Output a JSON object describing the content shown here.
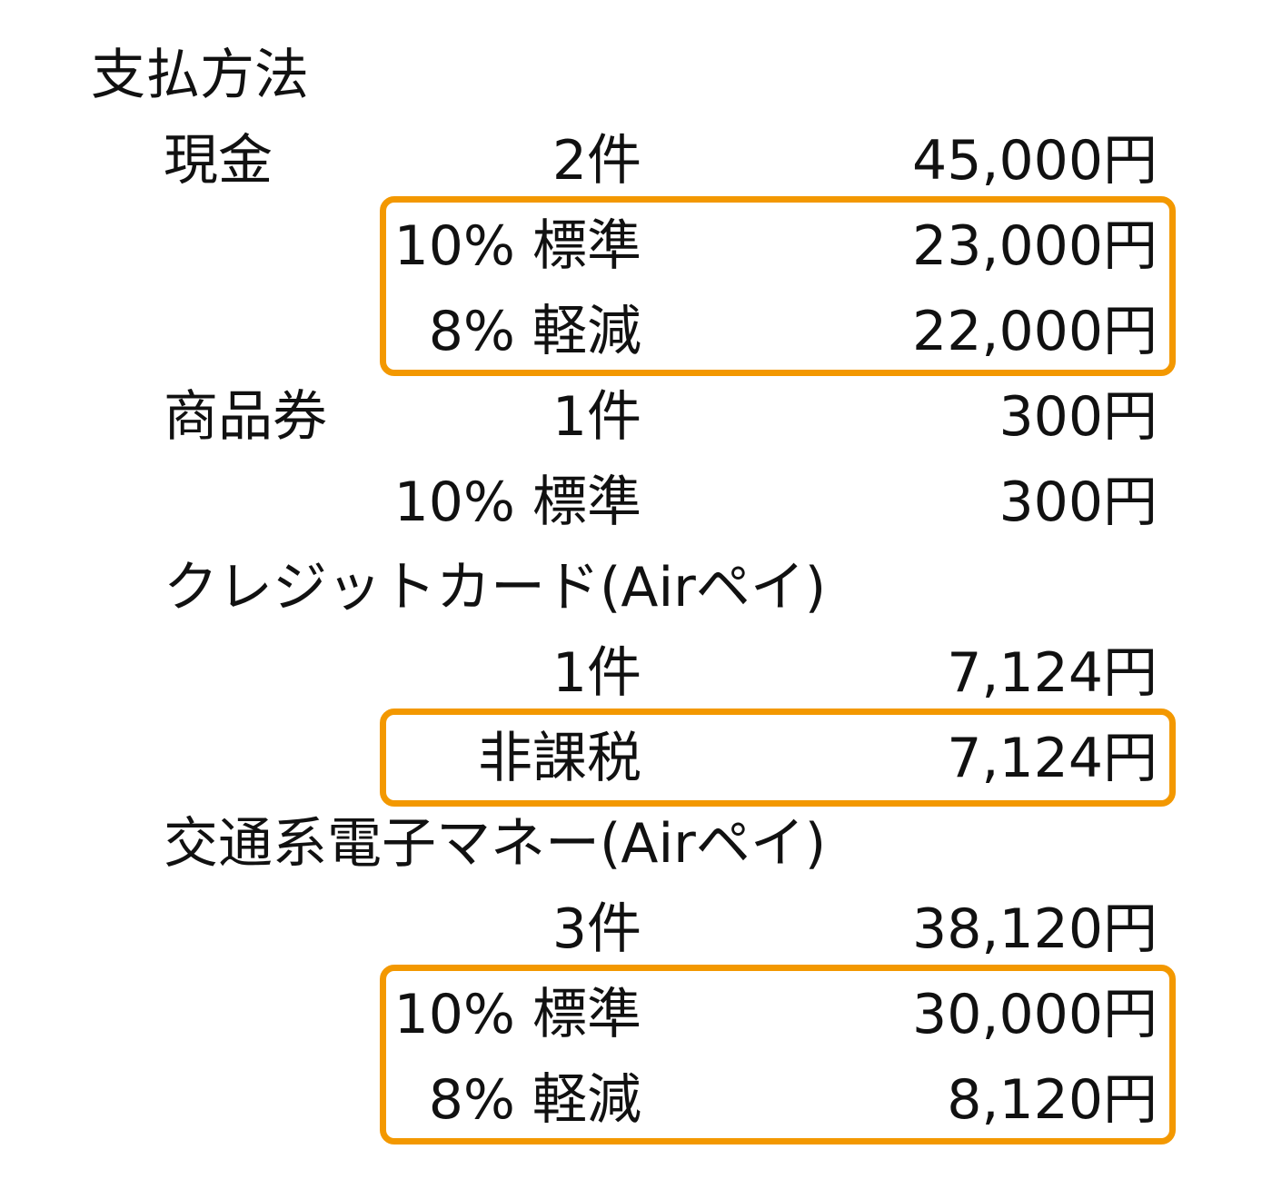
{
  "heading": "支払方法",
  "highlight_color": "#f39800",
  "payment_methods": [
    {
      "name": "現金",
      "count": "2件",
      "total": "45,000円",
      "breakdown": [
        {
          "label": "10% 標準",
          "amount": "23,000円"
        },
        {
          "label": "8% 軽減",
          "amount": "22,000円"
        }
      ],
      "breakdown_highlighted": true
    },
    {
      "name": "商品券",
      "count": "1件",
      "total": "300円",
      "breakdown": [
        {
          "label": "10% 標準",
          "amount": "300円"
        }
      ],
      "breakdown_highlighted": false
    },
    {
      "name": "クレジットカード(Airペイ)",
      "count": "1件",
      "total": "7,124円",
      "breakdown": [
        {
          "label": "非課税",
          "amount": "7,124円"
        }
      ],
      "breakdown_highlighted": true
    },
    {
      "name": "交通系電子マネー(Airペイ)",
      "count": "3件",
      "total": "38,120円",
      "breakdown": [
        {
          "label": "10% 標準",
          "amount": "30,000円"
        },
        {
          "label": "8% 軽減",
          "amount": "8,120円"
        }
      ],
      "breakdown_highlighted": true
    }
  ]
}
